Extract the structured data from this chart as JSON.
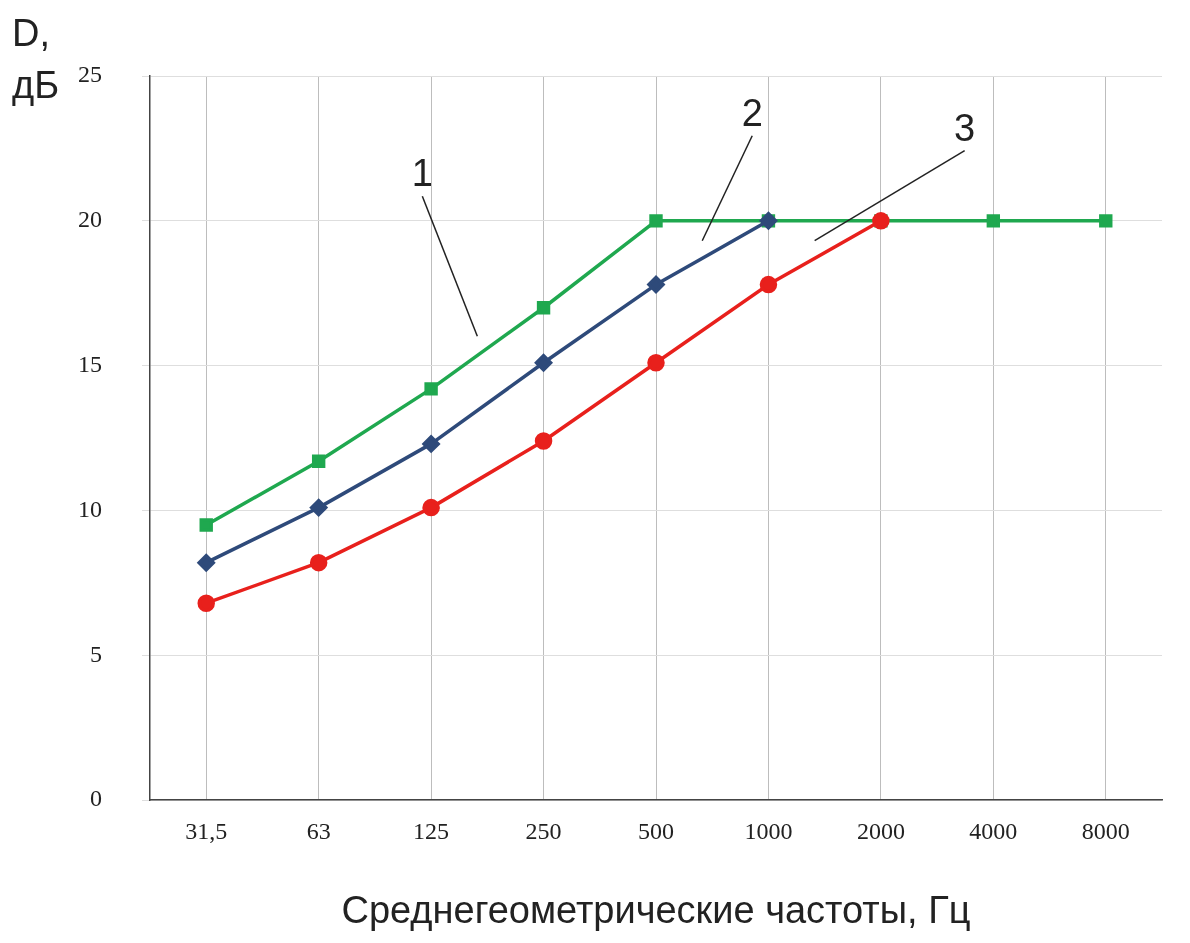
{
  "chart_data": {
    "type": "line",
    "xlabel": "Среднегеометрические частоты, Гц",
    "ylabel": "D, дБ",
    "categories": [
      "31,5",
      "63",
      "125",
      "250",
      "500",
      "1000",
      "2000",
      "4000",
      "8000"
    ],
    "series": [
      {
        "name": "1",
        "color": "#1fa84f",
        "marker": "square",
        "values": [
          9.5,
          11.7,
          14.2,
          17.0,
          20,
          20,
          20,
          20,
          20
        ]
      },
      {
        "name": "2",
        "color": "#2e4a7a",
        "marker": "diamond",
        "values": [
          8.2,
          10.1,
          12.3,
          15.1,
          17.8,
          20,
          null,
          null,
          null
        ]
      },
      {
        "name": "3",
        "color": "#e8201c",
        "marker": "circle",
        "values": [
          6.8,
          8.2,
          10.1,
          12.4,
          15.1,
          17.8,
          20,
          null,
          null
        ]
      }
    ],
    "ylim": [
      0,
      25
    ],
    "yticks": [
      0,
      5,
      10,
      15,
      20,
      25
    ],
    "grid": true,
    "legend": false,
    "line_style": "solid"
  }
}
